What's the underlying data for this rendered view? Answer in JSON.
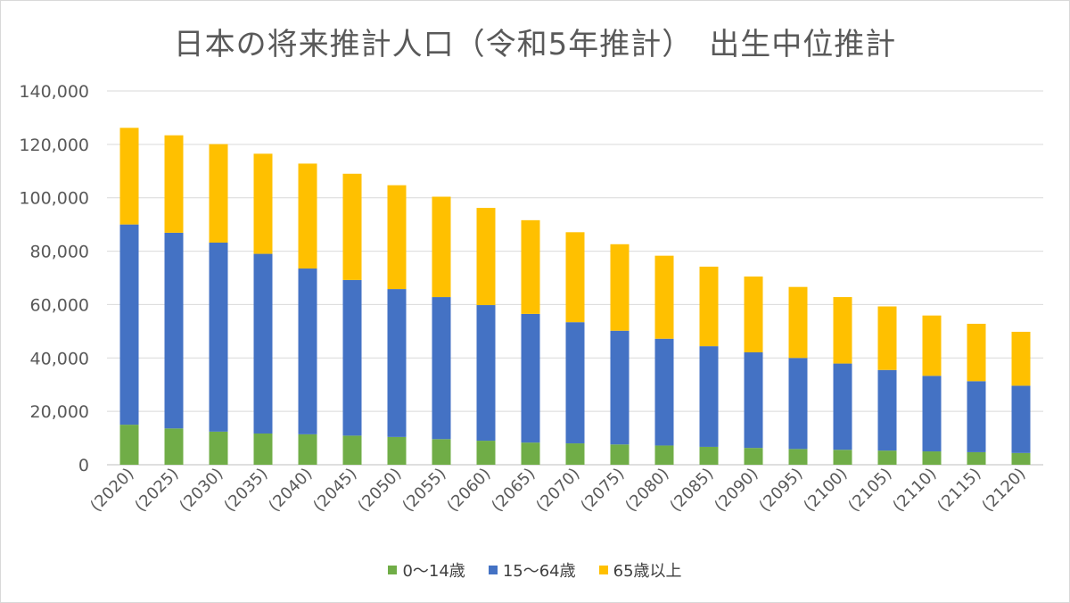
{
  "chart_data": {
    "type": "bar",
    "stacked": true,
    "title": "日本の将来推計人口（令和5年推計）　出生中位推計",
    "xlabel": "",
    "ylabel": "",
    "ylim": [
      0,
      140000
    ],
    "yticks": [
      "0",
      "20,000",
      "40,000",
      "60,000",
      "80,000",
      "100,000",
      "120,000",
      "140,000"
    ],
    "grid": true,
    "legend_position": "bottom",
    "categories": [
      "(2020)",
      "(2025)",
      "(2030)",
      "(2035)",
      "(2040)",
      "(2045)",
      "(2050)",
      "(2055)",
      "(2060)",
      "(2065)",
      "(2070)",
      "(2075)",
      "(2080)",
      "(2085)",
      "(2090)",
      "(2095)",
      "(2100)",
      "(2105)",
      "(2110)",
      "(2115)",
      "(2120)"
    ],
    "series": [
      {
        "name": "0～14歳",
        "color": "#70ad47",
        "values": [
          15000,
          13600,
          12400,
          11700,
          11400,
          10900,
          10400,
          9600,
          9000,
          8300,
          8000,
          7600,
          7200,
          6700,
          6300,
          5900,
          5600,
          5300,
          5000,
          4700,
          4400
        ]
      },
      {
        "name": "15～64歳",
        "color": "#4472c4",
        "values": [
          75000,
          73300,
          70800,
          67300,
          62100,
          58300,
          55400,
          53200,
          50800,
          48200,
          45400,
          42600,
          40000,
          37700,
          35800,
          34100,
          32300,
          30200,
          28300,
          26600,
          25200
        ]
      },
      {
        "name": "65歳以上",
        "color": "#ffc000",
        "values": [
          36200,
          36500,
          36900,
          37500,
          39300,
          39800,
          38900,
          37600,
          36400,
          35100,
          33700,
          32400,
          31100,
          29800,
          28400,
          26600,
          24900,
          23800,
          22600,
          21500,
          20200
        ]
      }
    ]
  }
}
